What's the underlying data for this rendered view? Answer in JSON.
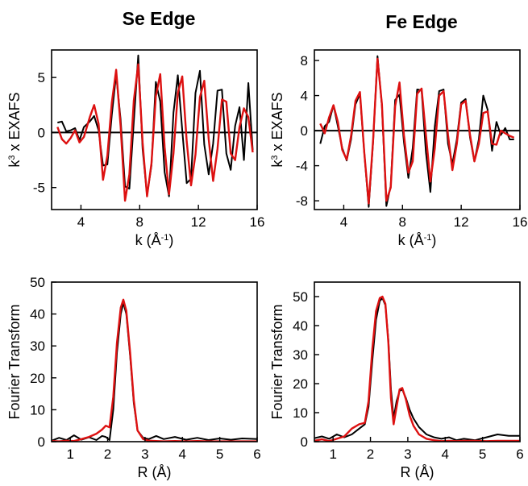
{
  "colors": {
    "data": "#000000",
    "fit": "#dd1111"
  },
  "columns": [
    {
      "title": "Se Edge"
    },
    {
      "title": "Fe Edge"
    }
  ],
  "chart_data": [
    {
      "type": "line",
      "panel": "Se Edge EXAFS",
      "xlabel": "k (Å⁻¹)",
      "ylabel": "k³ x EXAFS",
      "xlim": [
        2,
        16
      ],
      "ylim": [
        -7,
        7.5
      ],
      "xticks": [
        4,
        8,
        12,
        16
      ],
      "yticks": [
        5,
        0,
        -5
      ],
      "zero_line": true,
      "series": [
        {
          "color": "#000000",
          "x": [
            2.4,
            2.7,
            3.0,
            3.3,
            3.6,
            3.9,
            4.2,
            4.6,
            4.9,
            5.2,
            5.5,
            5.8,
            6.1,
            6.4,
            6.7,
            7.0,
            7.3,
            7.6,
            7.9,
            8.2,
            8.5,
            8.8,
            9.1,
            9.4,
            9.7,
            10.0,
            10.3,
            10.6,
            10.9,
            11.2,
            11.5,
            11.8,
            12.1,
            12.4,
            12.7,
            13.0,
            13.3,
            13.6,
            13.9,
            14.2,
            14.5,
            14.8,
            15.1,
            15.4,
            15.7
          ],
          "y": [
            0.9,
            1.0,
            0.1,
            0.2,
            0.4,
            -0.7,
            0.5,
            1.0,
            1.5,
            0.2,
            -3.0,
            -2.9,
            1.6,
            5.3,
            1.2,
            -4.9,
            -5.1,
            1.0,
            7.0,
            -1.5,
            -5.7,
            -3.0,
            4.6,
            2.8,
            -3.6,
            -5.8,
            1.8,
            5.2,
            0.2,
            -4.6,
            -4.2,
            3.6,
            5.6,
            -1.1,
            -3.8,
            -1.0,
            3.8,
            3.9,
            -1.9,
            -3.4,
            0.6,
            2.3,
            -2.5,
            4.5,
            -1.6
          ]
        },
        {
          "color": "#dd1111",
          "x": [
            2.4,
            2.7,
            3.0,
            3.3,
            3.6,
            3.9,
            4.2,
            4.6,
            4.9,
            5.2,
            5.5,
            5.8,
            6.1,
            6.4,
            6.7,
            7.0,
            7.3,
            7.6,
            7.9,
            8.2,
            8.5,
            8.8,
            9.1,
            9.4,
            9.7,
            10.0,
            10.3,
            10.6,
            10.9,
            11.2,
            11.5,
            11.8,
            12.1,
            12.4,
            12.7,
            13.0,
            13.3,
            13.6,
            13.9,
            14.2,
            14.5,
            14.8,
            15.1,
            15.4,
            15.7
          ],
          "y": [
            0.5,
            -0.6,
            -1.0,
            -0.5,
            0.2,
            -0.9,
            -0.4,
            1.4,
            2.5,
            0.8,
            -4.3,
            -2.1,
            2.7,
            5.7,
            0.6,
            -6.2,
            -3.8,
            2.9,
            6.2,
            -0.9,
            -5.8,
            -2.8,
            3.3,
            5.3,
            -1.3,
            -5.6,
            -1.9,
            3.6,
            5.1,
            -0.8,
            -4.8,
            -2.0,
            3.2,
            4.7,
            -0.6,
            -4.4,
            -1.5,
            3.0,
            2.8,
            -1.9,
            -2.5,
            0.5,
            2.2,
            1.4,
            -1.8
          ]
        }
      ]
    },
    {
      "type": "line",
      "panel": "Fe Edge EXAFS",
      "xlabel": "k (Å⁻¹)",
      "ylabel": "k³ x EXAFS",
      "xlim": [
        2,
        16
      ],
      "ylim": [
        -9,
        9.2
      ],
      "xticks": [
        4,
        8,
        12,
        16
      ],
      "yticks": [
        8,
        4,
        0,
        -4,
        -8
      ],
      "zero_line": true,
      "series": [
        {
          "color": "#000000",
          "x": [
            2.4,
            2.7,
            3.0,
            3.3,
            3.6,
            3.9,
            4.2,
            4.5,
            4.8,
            5.1,
            5.4,
            5.7,
            6.0,
            6.3,
            6.6,
            6.9,
            7.2,
            7.5,
            7.8,
            8.1,
            8.4,
            8.7,
            9.0,
            9.3,
            9.6,
            9.9,
            10.2,
            10.5,
            10.8,
            11.1,
            11.4,
            11.7,
            12.0,
            12.3,
            12.6,
            12.9,
            13.2,
            13.5,
            13.8,
            14.1,
            14.4,
            14.7,
            15.0,
            15.3,
            15.6
          ],
          "y": [
            -1.5,
            0.5,
            1.0,
            2.9,
            0.5,
            -2.0,
            -3.4,
            -1.0,
            3.0,
            4.2,
            -2.5,
            -8.7,
            -1.2,
            8.5,
            2.8,
            -8.6,
            -6.3,
            3.5,
            4.1,
            -1.3,
            -5.4,
            -2.0,
            4.7,
            4.6,
            -2.5,
            -7.0,
            0.5,
            4.5,
            4.7,
            -1.5,
            -3.8,
            -1.0,
            3.2,
            3.6,
            -0.8,
            -3.5,
            -1.0,
            4.0,
            2.4,
            -2.3,
            1.0,
            -0.5,
            0.3,
            -1.0,
            -1.0
          ]
        },
        {
          "color": "#dd1111",
          "x": [
            2.4,
            2.7,
            3.0,
            3.3,
            3.6,
            3.9,
            4.2,
            4.5,
            4.8,
            5.1,
            5.4,
            5.7,
            6.0,
            6.3,
            6.6,
            6.9,
            7.2,
            7.5,
            7.8,
            8.1,
            8.4,
            8.7,
            9.0,
            9.3,
            9.6,
            9.9,
            10.2,
            10.5,
            10.8,
            11.1,
            11.4,
            11.7,
            12.0,
            12.3,
            12.6,
            12.9,
            13.2,
            13.5,
            13.8,
            14.1,
            14.4,
            14.7,
            15.0,
            15.3,
            15.6
          ],
          "y": [
            0.8,
            -0.3,
            1.5,
            2.9,
            1.0,
            -2.2,
            -3.3,
            -0.6,
            3.4,
            4.4,
            -2.5,
            -8.3,
            -1.0,
            8.2,
            3.0,
            -8.0,
            -6.5,
            2.8,
            5.5,
            -0.5,
            -4.8,
            -3.5,
            4.2,
            4.8,
            -0.5,
            -5.8,
            -2.0,
            4.0,
            4.5,
            -0.5,
            -4.5,
            -1.5,
            3.0,
            3.4,
            -0.5,
            -3.5,
            -1.5,
            2.0,
            2.2,
            -1.5,
            -1.6,
            0.0,
            -0.3,
            -0.6,
            -0.8
          ]
        }
      ]
    },
    {
      "type": "line",
      "panel": "Se Edge Fourier Transform",
      "xlabel": "R (Å)",
      "ylabel": "Fourier Transform",
      "xlim": [
        0.5,
        6
      ],
      "ylim": [
        0,
        50
      ],
      "xticks": [
        1,
        2,
        3,
        4,
        5,
        6
      ],
      "yticks": [
        0,
        10,
        20,
        30,
        40,
        50
      ],
      "zero_line": false,
      "series": [
        {
          "color": "#000000",
          "x": [
            0.5,
            0.7,
            0.9,
            1.1,
            1.3,
            1.5,
            1.7,
            1.85,
            1.95,
            2.05,
            2.15,
            2.25,
            2.35,
            2.42,
            2.5,
            2.6,
            2.7,
            2.8,
            2.95,
            3.1,
            3.3,
            3.5,
            3.8,
            4.1,
            4.4,
            4.7,
            5.0,
            5.3,
            5.6,
            6.0
          ],
          "y": [
            0.3,
            1.2,
            0.5,
            2.0,
            0.6,
            1.4,
            0.5,
            1.8,
            1.5,
            0.5,
            10.0,
            28.0,
            40.0,
            43.5,
            40.0,
            27.0,
            12.0,
            3.5,
            1.2,
            0.8,
            1.8,
            0.8,
            1.5,
            0.6,
            1.2,
            0.5,
            1.0,
            0.6,
            1.0,
            0.8
          ]
        },
        {
          "color": "#dd1111",
          "x": [
            0.5,
            0.7,
            0.9,
            1.1,
            1.3,
            1.5,
            1.7,
            1.85,
            1.95,
            2.05,
            2.15,
            2.25,
            2.35,
            2.42,
            2.5,
            2.6,
            2.7,
            2.8,
            2.95,
            3.1,
            3.3,
            3.5,
            3.8,
            4.1,
            4.4,
            4.7,
            5.0,
            5.3,
            5.6,
            6.0
          ],
          "y": [
            0.2,
            0.1,
            0.3,
            0.2,
            0.8,
            1.5,
            2.5,
            3.8,
            5.0,
            4.5,
            14.0,
            31.0,
            42.0,
            44.5,
            41.0,
            28.0,
            13.0,
            3.5,
            0.8,
            0.3,
            0.2,
            0.1,
            0.2,
            0.1,
            0.2,
            0.1,
            0.1,
            0.1,
            0.1,
            0.1
          ]
        }
      ]
    },
    {
      "type": "line",
      "panel": "Fe Edge Fourier Transform",
      "xlabel": "R (Å)",
      "ylabel": "Fourier Transform",
      "xlim": [
        0.5,
        6
      ],
      "ylim": [
        0,
        55
      ],
      "xticks": [
        1,
        2,
        3,
        4,
        5,
        6
      ],
      "yticks": [
        0,
        10,
        20,
        30,
        40,
        50
      ],
      "zero_line": false,
      "series": [
        {
          "color": "#000000",
          "x": [
            0.5,
            0.7,
            0.9,
            1.1,
            1.3,
            1.5,
            1.7,
            1.85,
            1.95,
            2.05,
            2.15,
            2.25,
            2.32,
            2.4,
            2.48,
            2.55,
            2.62,
            2.7,
            2.78,
            2.85,
            2.95,
            3.05,
            3.15,
            3.3,
            3.5,
            3.7,
            3.9,
            4.1,
            4.3,
            4.5,
            4.8,
            5.1,
            5.4,
            5.7,
            6.0
          ],
          "y": [
            1.2,
            1.8,
            1.0,
            2.5,
            1.5,
            2.5,
            4.5,
            6.0,
            12.0,
            28.0,
            42.0,
            48.5,
            49.5,
            47.0,
            35.0,
            18.0,
            8.0,
            14.0,
            17.5,
            18.0,
            15.0,
            11.0,
            8.0,
            5.0,
            2.5,
            1.5,
            1.0,
            1.5,
            0.5,
            1.0,
            0.5,
            1.5,
            2.5,
            2.0,
            2.0
          ]
        },
        {
          "color": "#dd1111",
          "x": [
            0.5,
            0.7,
            0.9,
            1.1,
            1.3,
            1.5,
            1.7,
            1.85,
            1.95,
            2.05,
            2.15,
            2.25,
            2.32,
            2.4,
            2.48,
            2.55,
            2.62,
            2.7,
            2.78,
            2.85,
            2.95,
            3.05,
            3.15,
            3.3,
            3.5,
            3.7,
            3.9,
            4.1,
            4.3,
            4.5,
            4.8,
            5.1,
            5.4,
            5.7,
            6.0
          ],
          "y": [
            0.3,
            0.8,
            0.2,
            1.0,
            1.8,
            4.5,
            6.0,
            6.5,
            14.0,
            32.0,
            45.0,
            49.5,
            50.0,
            47.5,
            34.0,
            15.0,
            6.0,
            12.0,
            18.0,
            18.5,
            14.5,
            9.0,
            5.5,
            2.5,
            1.0,
            0.5,
            0.2,
            0.3,
            0.2,
            0.3,
            0.3,
            0.2,
            0.3,
            0.3,
            0.3
          ]
        }
      ]
    }
  ]
}
